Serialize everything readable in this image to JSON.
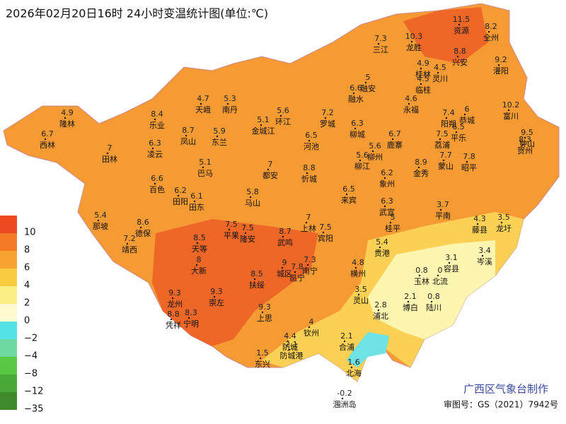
{
  "header": {
    "title": "2026年02月20日16时 24小时变温统计图(单位:℃)"
  },
  "legend": {
    "items": [
      {
        "label": "10",
        "color": "#ee4a22"
      },
      {
        "label": "8",
        "color": "#f47a26"
      },
      {
        "label": "6",
        "color": "#f8a232"
      },
      {
        "label": "4",
        "color": "#f9cb3e"
      },
      {
        "label": "2",
        "color": "#fbef86"
      },
      {
        "label": "0",
        "color": "#fdfbcf"
      },
      {
        "label": "−2",
        "color": "#55e3e8"
      },
      {
        "label": "−4",
        "color": "#6fd9a4"
      },
      {
        "label": "−8",
        "color": "#5ac845"
      },
      {
        "label": "−12",
        "color": "#4aa838"
      },
      {
        "label": "−35",
        "color": "#3f8a2c"
      }
    ]
  },
  "places": [
    {
      "name": "隆林",
      "value": 4.9
    },
    {
      "name": "西林",
      "value": 6.7
    },
    {
      "name": "乐业",
      "value": 8.4
    },
    {
      "name": "天峨",
      "value": 4.7
    },
    {
      "name": "南丹",
      "value": 5.3
    },
    {
      "name": "环江",
      "value": 5.6
    },
    {
      "name": "金城江",
      "value": 5.1
    },
    {
      "name": "罗城",
      "value": 7.2
    },
    {
      "name": "融水",
      "value": 6.6
    },
    {
      "name": "融安",
      "value": 5
    },
    {
      "name": "三江",
      "value": 7.3
    },
    {
      "name": "龙胜",
      "value": 10.3
    },
    {
      "name": "资源",
      "value": 11.5
    },
    {
      "name": "全州",
      "value": 8.2
    },
    {
      "name": "兴安",
      "value": 8.8
    },
    {
      "name": "灌阳",
      "value": 9.2
    },
    {
      "name": "灵川",
      "value": 4.5
    },
    {
      "name": "桂林",
      "value": 4.9
    },
    {
      "name": "临桂",
      "value": 4.5
    },
    {
      "name": "永福",
      "value": 4.6
    },
    {
      "name": "阳朔",
      "value": 7.4
    },
    {
      "name": "恭城",
      "value": 6
    },
    {
      "name": "富川",
      "value": 10.2
    },
    {
      "name": "钟山",
      "value": 9.5
    },
    {
      "name": "贺州",
      "value": 8.3
    },
    {
      "name": "平乐",
      "value": 6.5
    },
    {
      "name": "荔浦",
      "value": 7.5
    },
    {
      "name": "昭平",
      "value": 7.8
    },
    {
      "name": "蒙山",
      "value": 7.7
    },
    {
      "name": "金秀",
      "value": 8.9
    },
    {
      "name": "鹿寨",
      "value": 6.7
    },
    {
      "name": "柳城",
      "value": 6.3
    },
    {
      "name": "柳州",
      "value": 5.6
    },
    {
      "name": "柳江",
      "value": 5.6
    },
    {
      "name": "河池",
      "value": 6.5
    },
    {
      "name": "忻城",
      "value": 8.8
    },
    {
      "name": "象州",
      "value": 6.2
    },
    {
      "name": "东兰",
      "value": 5.9
    },
    {
      "name": "凤山",
      "value": 8.7
    },
    {
      "name": "凌云",
      "value": 6.3
    },
    {
      "name": "田林",
      "value": 7
    },
    {
      "name": "巴马",
      "value": 5.1
    },
    {
      "name": "都安",
      "value": 7
    },
    {
      "name": "百色",
      "value": 6.6
    },
    {
      "name": "田阳",
      "value": 6.2
    },
    {
      "name": "田东",
      "value": 6.1
    },
    {
      "name": "马山",
      "value": 5.8
    },
    {
      "name": "来宾",
      "value": 6.5
    },
    {
      "name": "武宣",
      "value": 6.3
    },
    {
      "name": "桂平",
      "value": 5
    },
    {
      "name": "平南",
      "value": 3.7
    },
    {
      "name": "藤县",
      "value": 4.3
    },
    {
      "name": "龙圩",
      "value": 3.5
    },
    {
      "name": "那坡",
      "value": 5.4
    },
    {
      "name": "德保",
      "value": 8.6
    },
    {
      "name": "靖西",
      "value": 7.2
    },
    {
      "name": "平果",
      "value": 7.5
    },
    {
      "name": "天等",
      "value": 8.5
    },
    {
      "name": "隆安",
      "value": 7.5
    },
    {
      "name": "大新",
      "value": 8
    },
    {
      "name": "上林",
      "value": 7
    },
    {
      "name": "宾阳",
      "value": 7.5
    },
    {
      "name": "武鸣",
      "value": 8.7
    },
    {
      "name": "贵港",
      "value": 5.4
    },
    {
      "name": "容县",
      "value": 3.1
    },
    {
      "name": "岑溪",
      "value": 3.4
    },
    {
      "name": "北流",
      "value": 0
    },
    {
      "name": "玉林",
      "value": 0.8
    },
    {
      "name": "横州",
      "value": 4.8
    },
    {
      "name": "南宁",
      "value": 7.3
    },
    {
      "name": "邕宁",
      "value": 7.8
    },
    {
      "name": "城区",
      "value": 9
    },
    {
      "name": "扶绥",
      "value": 8.5
    },
    {
      "name": "崇左",
      "value": 9.3
    },
    {
      "name": "龙州",
      "value": 9.3
    },
    {
      "name": "凭祥",
      "value": 8.8
    },
    {
      "name": "宁明",
      "value": 8.3
    },
    {
      "name": "上思",
      "value": 9.3
    },
    {
      "name": "灵山",
      "value": 3.5
    },
    {
      "name": "浦北",
      "value": 2.8
    },
    {
      "name": "博白",
      "value": 2.1
    },
    {
      "name": "陆川",
      "value": 0.8
    },
    {
      "name": "钦州",
      "value": 4
    },
    {
      "name": "防城",
      "value": 4.4
    },
    {
      "name": "防城港",
      "value": 2.1
    },
    {
      "name": "东兴",
      "value": 1.5
    },
    {
      "name": "合浦",
      "value": 2.1
    },
    {
      "name": "北海",
      "value": 1.6
    },
    {
      "name": "涠洲岛",
      "value": -0.2
    }
  ],
  "footer": {
    "producer": "广西区气象台制作",
    "approval": "审图号：GS（2021）7942号"
  }
}
